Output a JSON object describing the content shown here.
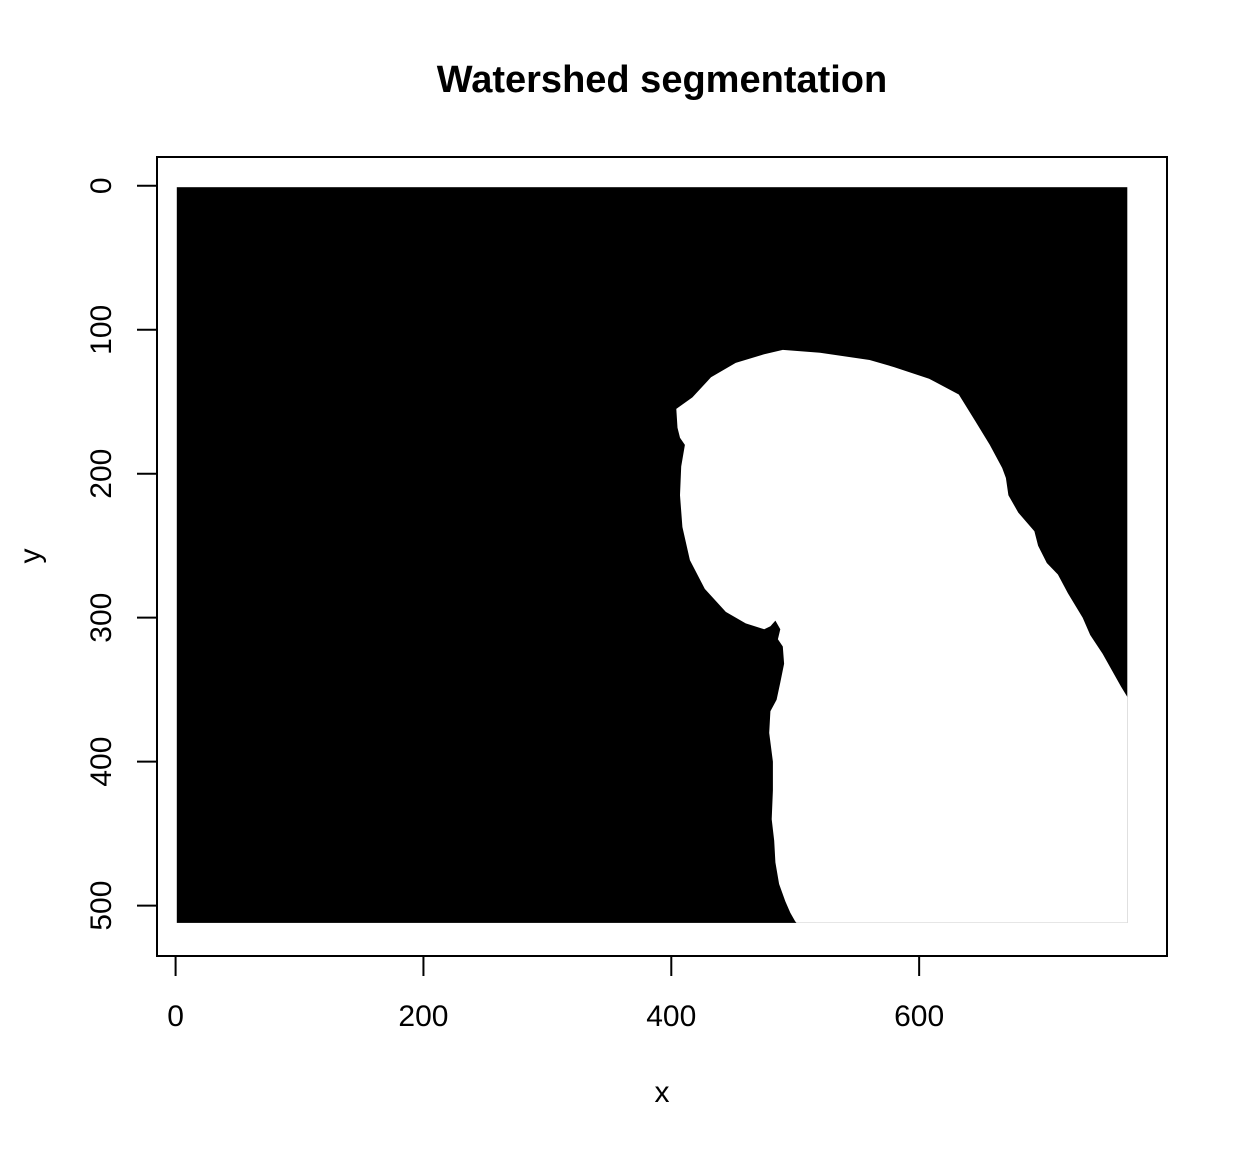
{
  "chart_data": {
    "type": "heatmap",
    "title": "Watershed segmentation",
    "xlabel": "x",
    "ylabel": "y",
    "xlim": [
      -15,
      800
    ],
    "ylim": [
      535,
      -20
    ],
    "y_reversed": true,
    "image_extent": {
      "x": [
        1,
        768
      ],
      "y": [
        1,
        512
      ]
    },
    "x_ticks": [
      {
        "value": 0,
        "label": "0"
      },
      {
        "value": 200,
        "label": "200"
      },
      {
        "value": 400,
        "label": "400"
      },
      {
        "value": 600,
        "label": "600"
      }
    ],
    "y_ticks": [
      {
        "value": 0,
        "label": "0"
      },
      {
        "value": 100,
        "label": "100"
      },
      {
        "value": 200,
        "label": "200"
      },
      {
        "value": 300,
        "label": "300"
      },
      {
        "value": 400,
        "label": "400"
      },
      {
        "value": 500,
        "label": "500"
      }
    ],
    "grid": false,
    "legend": "none",
    "regions": [
      {
        "label": "background",
        "color": "#000000"
      },
      {
        "label": "parrot",
        "color": "#ffffff"
      }
    ],
    "foreground_boundary": [
      [
        768,
        355
      ],
      [
        763,
        348
      ],
      [
        748,
        325
      ],
      [
        738,
        312
      ],
      [
        732,
        300
      ],
      [
        720,
        283
      ],
      [
        712,
        270
      ],
      [
        703,
        262
      ],
      [
        696,
        250
      ],
      [
        693,
        240
      ],
      [
        680,
        227
      ],
      [
        672,
        215
      ],
      [
        670,
        203
      ],
      [
        667,
        196
      ],
      [
        657,
        180
      ],
      [
        645,
        163
      ],
      [
        632,
        145
      ],
      [
        608,
        134
      ],
      [
        580,
        126
      ],
      [
        560,
        121
      ],
      [
        520,
        116
      ],
      [
        490,
        114
      ],
      [
        475,
        117
      ],
      [
        452,
        123
      ],
      [
        432,
        133
      ],
      [
        417,
        147
      ],
      [
        404,
        155
      ],
      [
        405,
        168
      ],
      [
        407,
        175
      ],
      [
        411,
        180
      ],
      [
        408,
        195
      ],
      [
        407,
        215
      ],
      [
        409,
        237
      ],
      [
        415,
        260
      ],
      [
        427,
        280
      ],
      [
        444,
        296
      ],
      [
        460,
        304
      ],
      [
        475,
        308
      ],
      [
        480,
        306
      ],
      [
        484,
        302
      ],
      [
        488,
        308
      ],
      [
        486,
        315
      ],
      [
        490,
        320
      ],
      [
        491,
        332
      ],
      [
        488,
        345
      ],
      [
        485,
        357
      ],
      [
        480,
        365
      ],
      [
        479,
        380
      ],
      [
        482,
        400
      ],
      [
        482,
        420
      ],
      [
        481,
        440
      ],
      [
        483,
        455
      ],
      [
        484,
        470
      ],
      [
        487,
        485
      ],
      [
        492,
        497
      ],
      [
        496,
        505
      ],
      [
        500,
        511
      ],
      [
        501,
        512
      ],
      [
        768,
        512
      ]
    ]
  }
}
